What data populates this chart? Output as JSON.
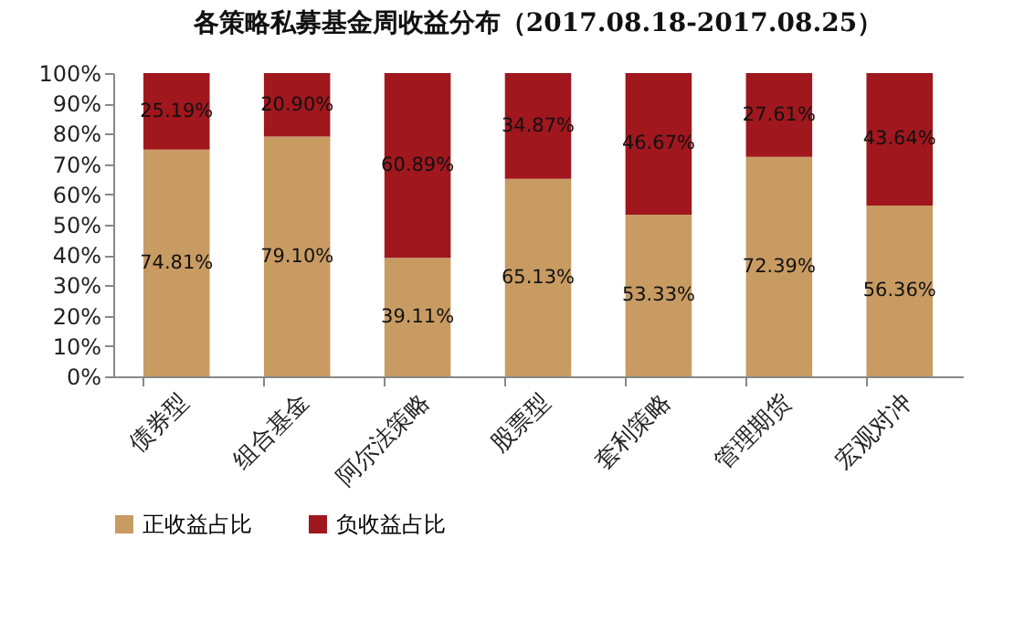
{
  "chart_data": {
    "type": "bar",
    "title": "各策略私募基金周收益分布（2017.08.18-2017.08.25）",
    "categories": [
      "债券型",
      "组合基金",
      "阿尔法策略",
      "股票型",
      "套利策略",
      "管理期货",
      "宏观对冲"
    ],
    "stacked": true,
    "ylim": [
      0,
      100
    ],
    "yticks": [
      {
        "value": 0,
        "label": "0%"
      },
      {
        "value": 10,
        "label": "10%"
      },
      {
        "value": 20,
        "label": "20%"
      },
      {
        "value": 30,
        "label": "30%"
      },
      {
        "value": 40,
        "label": "40%"
      },
      {
        "value": 50,
        "label": "50%"
      },
      {
        "value": 60,
        "label": "60%"
      },
      {
        "value": 70,
        "label": "70%"
      },
      {
        "value": 80,
        "label": "80%"
      },
      {
        "value": 90,
        "label": "90%"
      },
      {
        "value": 100,
        "label": "100%"
      }
    ],
    "series": [
      {
        "name": "正收益占比",
        "color": "#c89b63",
        "values": [
          74.81,
          79.1,
          39.11,
          65.13,
          53.33,
          72.39,
          56.36
        ],
        "value_labels": [
          "74.81%",
          "79.10%",
          "39.11%",
          "65.13%",
          "53.33%",
          "72.39%",
          "56.36%"
        ]
      },
      {
        "name": "负收益占比",
        "color": "#a0171e",
        "values": [
          25.19,
          20.9,
          60.89,
          34.87,
          46.67,
          27.61,
          43.64
        ],
        "value_labels": [
          "25.19%",
          "20.90%",
          "60.89%",
          "34.87%",
          "46.67%",
          "27.61%",
          "43.64%"
        ]
      }
    ],
    "grid": false,
    "legend": "bottom"
  }
}
